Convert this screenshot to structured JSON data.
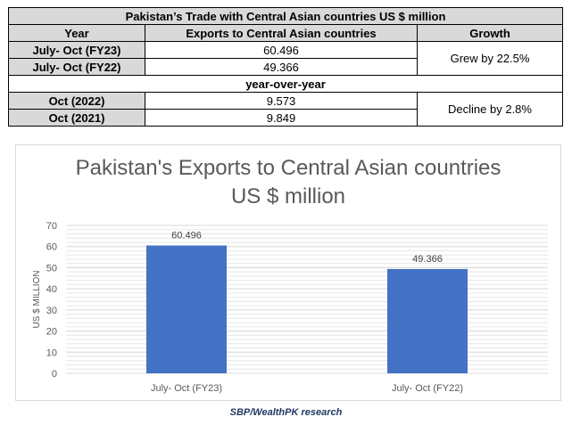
{
  "table": {
    "title": "Pakistan’s Trade with Central Asian countries US $ million",
    "headers": [
      "Year",
      "Exports to Central Asian countries",
      "Growth"
    ],
    "rows_fy": [
      {
        "label": "July- Oct (FY23)",
        "value": "60.496"
      },
      {
        "label": "July- Oct (FY22)",
        "value": "49.366"
      }
    ],
    "growth_fy": "Grew by 22.5%",
    "section_label": "year-over-year",
    "rows_yoy": [
      {
        "label": "Oct (2022)",
        "value": "9.573"
      },
      {
        "label": "Oct (2021)",
        "value": "9.849"
      }
    ],
    "growth_yoy": "Decline by 2.8%"
  },
  "chart_data": {
    "type": "bar",
    "title_line1": "Pakistan's Exports to Central Asian countries",
    "title_line2": "US $ million",
    "categories": [
      "July- Oct (FY23)",
      "July- Oct (FY22)"
    ],
    "values": [
      60.496,
      49.366
    ],
    "value_labels": [
      "60.496",
      "49.366"
    ],
    "xlabel": "",
    "ylabel": "US $ MILLION",
    "ylim": [
      0,
      70
    ],
    "yticks": [
      0,
      10,
      20,
      30,
      40,
      50,
      60,
      70
    ],
    "grid": true,
    "bar_color": "#4472c4"
  },
  "source": "SBP/WealthPK research"
}
